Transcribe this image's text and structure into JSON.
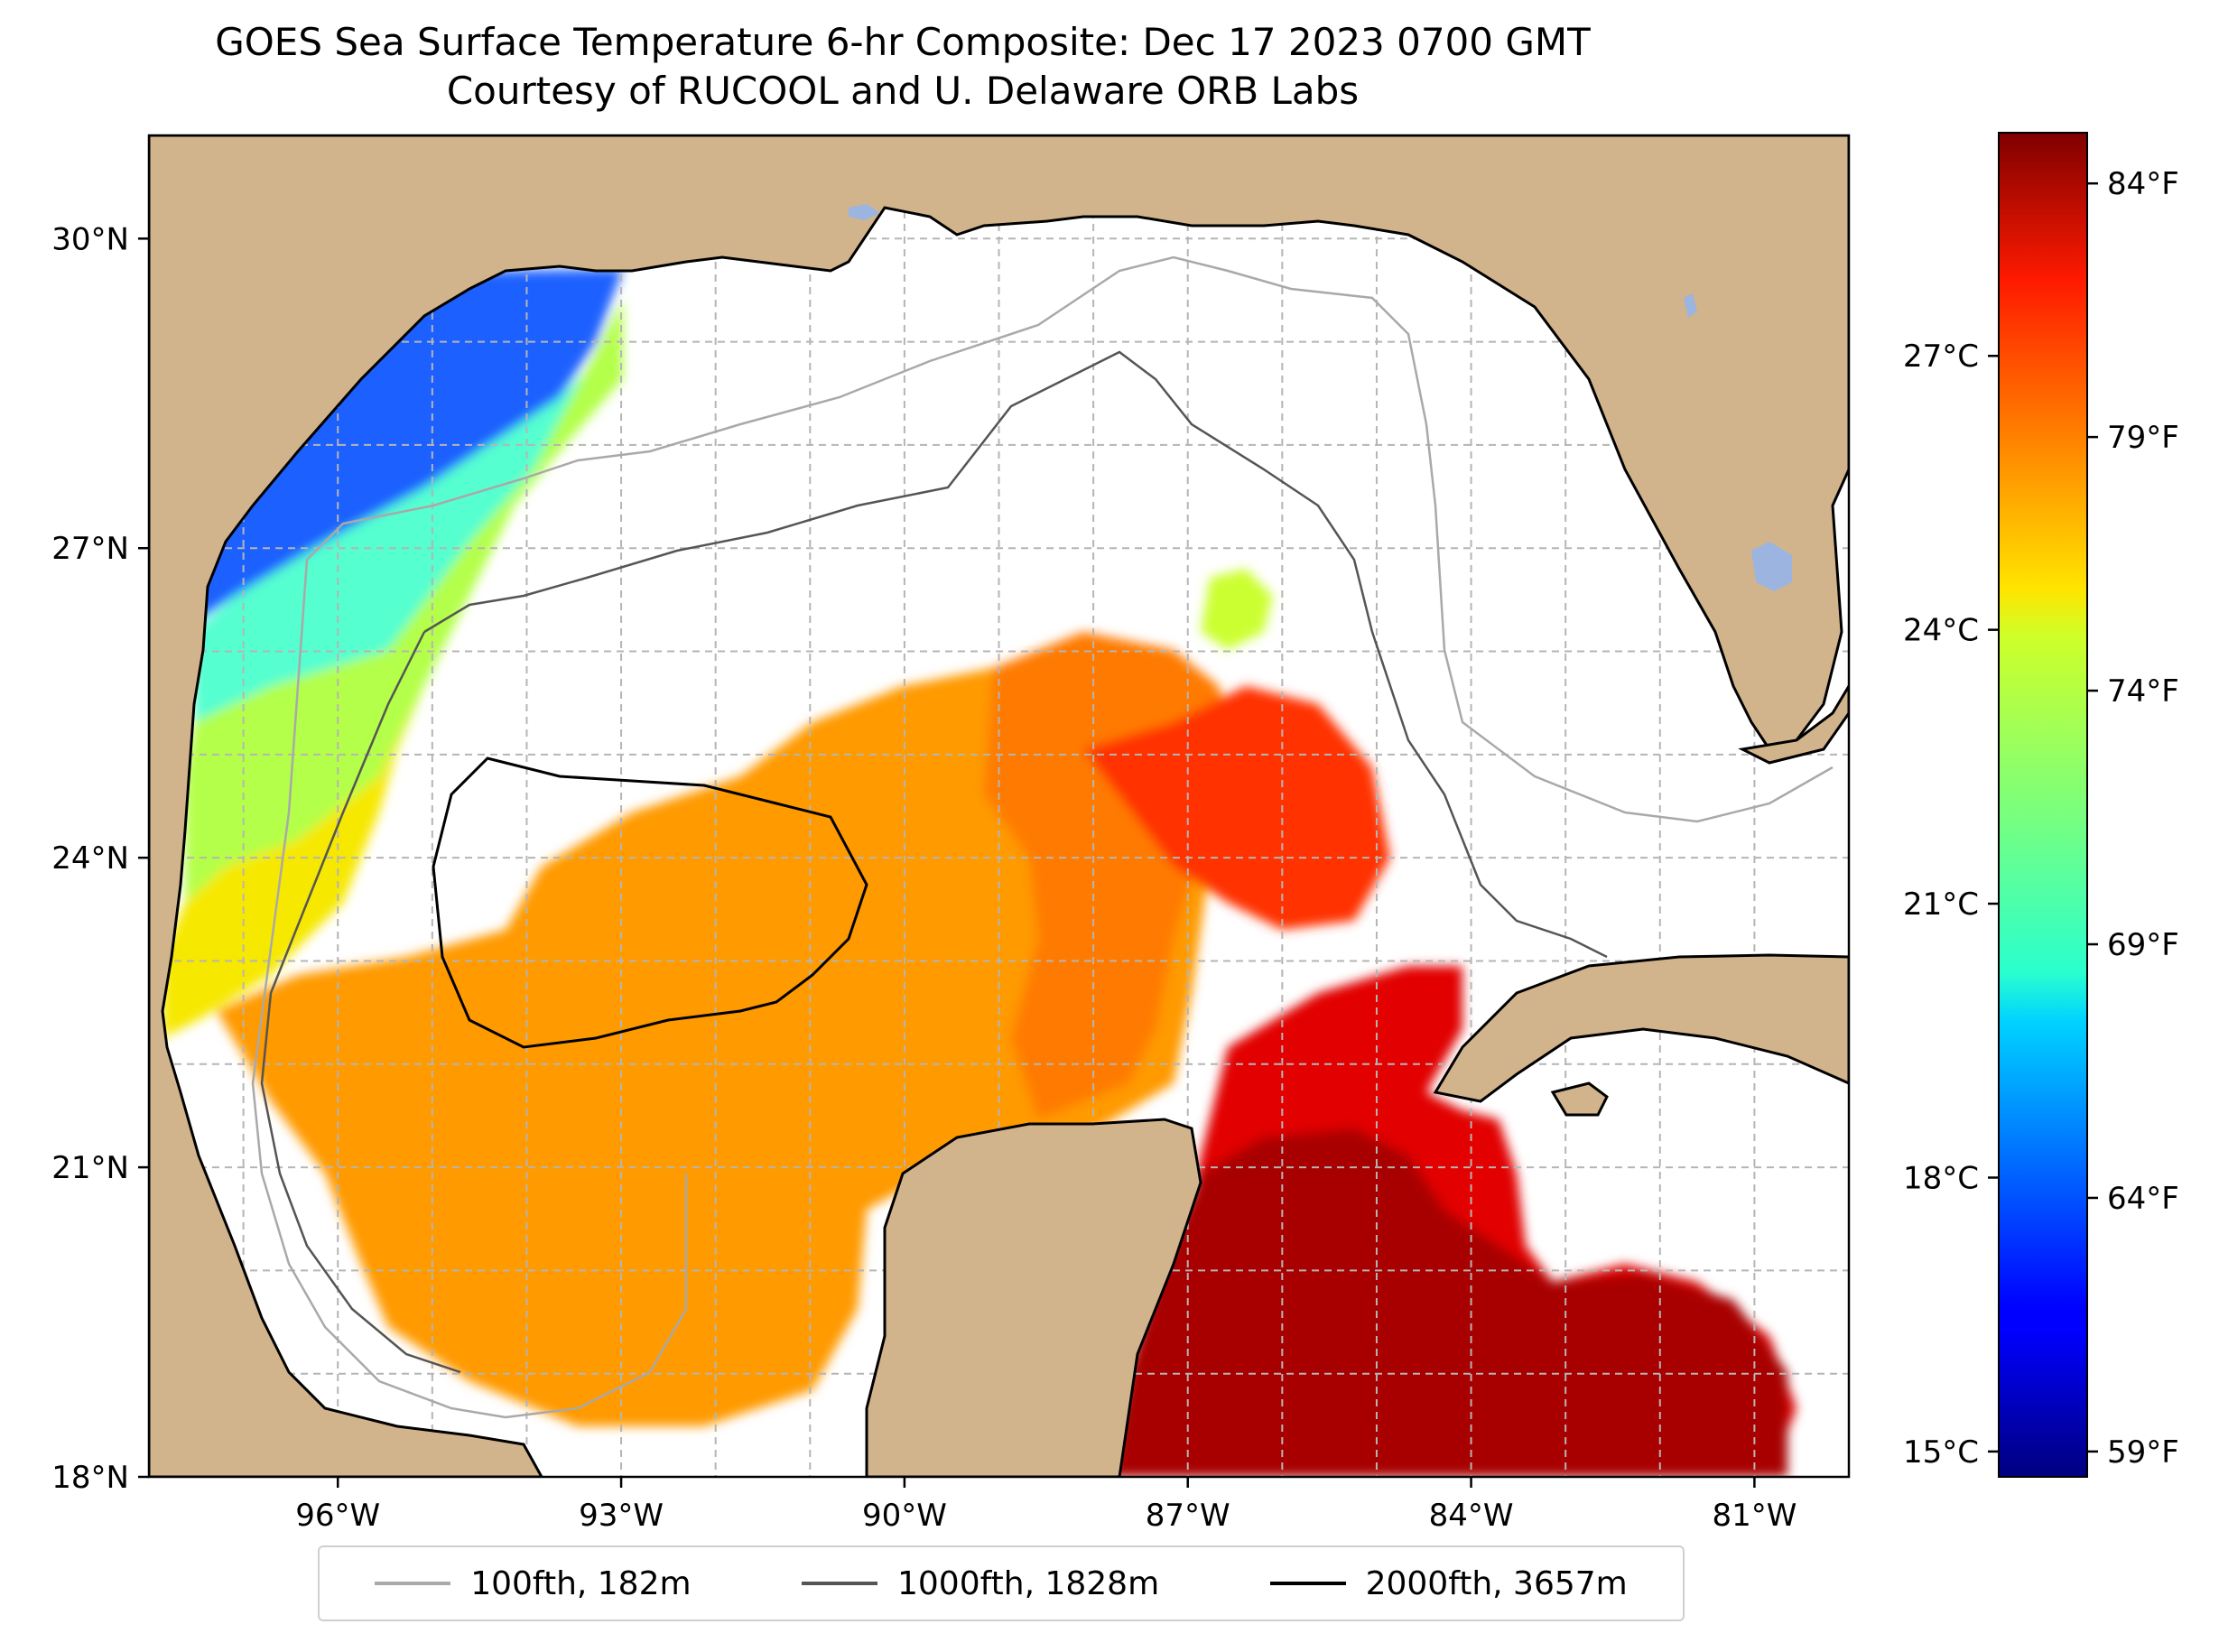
{
  "title": {
    "line1": "GOES Sea Surface Temperature 6-hr Composite: Dec 17 2023 0700 GMT",
    "line2": "Courtesy of RUCOOL and U. Delaware ORB Labs"
  },
  "map": {
    "extent": {
      "lon_min": -98.0,
      "lon_max": -80.0,
      "lat_min": 18.0,
      "lat_max": 31.0
    },
    "lat_ticks": [
      {
        "value": 30,
        "label": "30°N"
      },
      {
        "value": 27,
        "label": "27°N"
      },
      {
        "value": 24,
        "label": "24°N"
      },
      {
        "value": 21,
        "label": "21°N"
      },
      {
        "value": 18,
        "label": "18°N"
      }
    ],
    "lon_ticks": [
      {
        "value": -96,
        "label": "96°W"
      },
      {
        "value": -93,
        "label": "93°W"
      },
      {
        "value": -90,
        "label": "90°W"
      },
      {
        "value": -87,
        "label": "87°W"
      },
      {
        "value": -84,
        "label": "84°W"
      },
      {
        "value": -81,
        "label": "81°W"
      }
    ],
    "gridlines": true,
    "colors": {
      "land": "#d2b48c",
      "water": "#ffffff",
      "lakes": "#9bb4e0",
      "coastline": "#000000",
      "grid": "#b0b0b0"
    }
  },
  "colorbar": {
    "colormap": "jet",
    "range_f": [
      58.5,
      85
    ],
    "fahrenheit_ticks": [
      {
        "value": 84,
        "label": "84°F"
      },
      {
        "value": 79,
        "label": "79°F"
      },
      {
        "value": 74,
        "label": "74°F"
      },
      {
        "value": 69,
        "label": "69°F"
      },
      {
        "value": 64,
        "label": "64°F"
      },
      {
        "value": 59,
        "label": "59°F"
      }
    ],
    "celsius_ticks": [
      {
        "value": 27,
        "label": "27°C"
      },
      {
        "value": 24,
        "label": "24°C"
      },
      {
        "value": 21,
        "label": "21°C"
      },
      {
        "value": 18,
        "label": "18°C"
      },
      {
        "value": 15,
        "label": "15°C"
      }
    ]
  },
  "legend": {
    "items": [
      {
        "label": "100fth, 182m",
        "color": "#a9a9a9"
      },
      {
        "label": "1000fth, 1828m",
        "color": "#555555"
      },
      {
        "label": "2000fth, 3657m",
        "color": "#000000"
      }
    ]
  }
}
